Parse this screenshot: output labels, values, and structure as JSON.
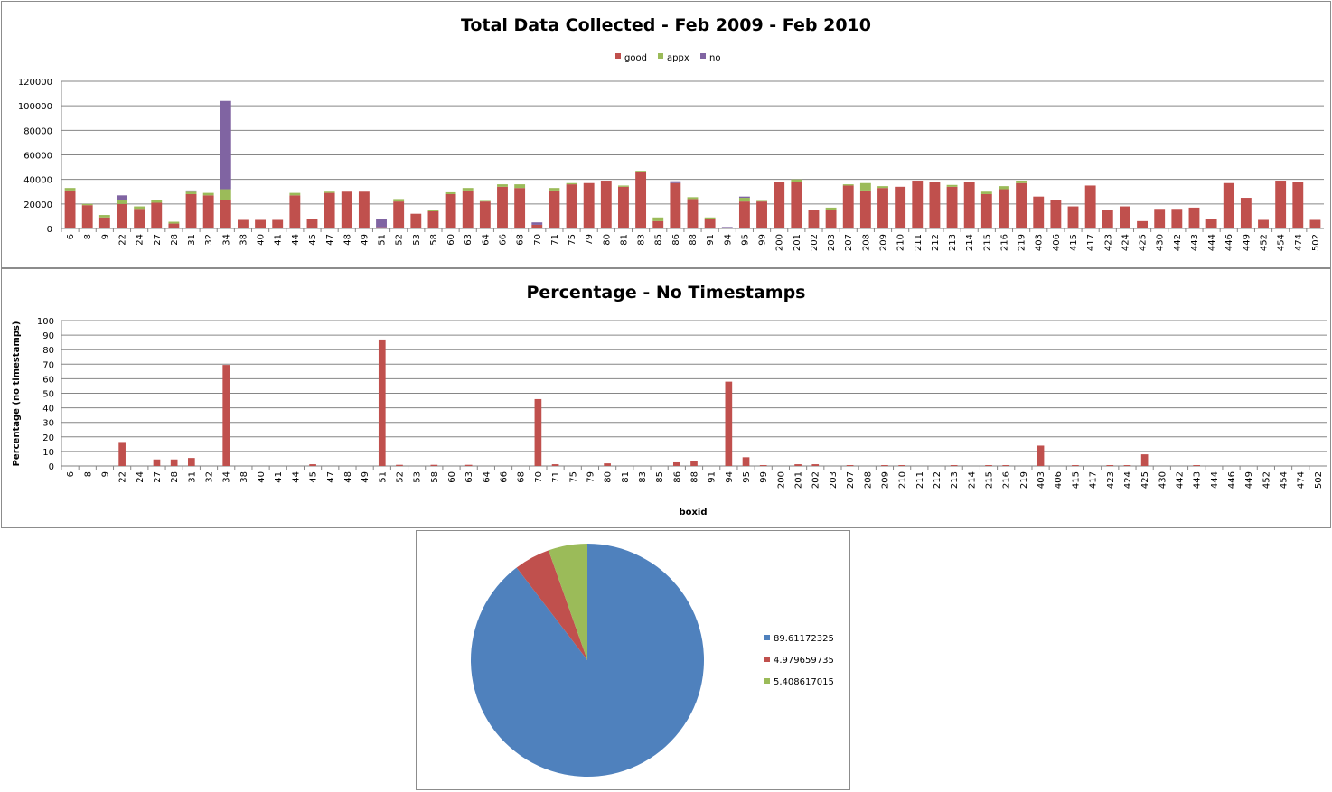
{
  "chart_data": [
    {
      "type": "bar",
      "stacked": true,
      "title": "Total Data Collected - Feb 2009 - Feb 2010",
      "xlabel": "",
      "ylabel": "",
      "ylim": [
        0,
        120000
      ],
      "yticks": [
        0,
        20000,
        40000,
        60000,
        80000,
        100000,
        120000
      ],
      "grid": true,
      "legend_position": "top",
      "categories": [
        "6",
        "8",
        "9",
        "22",
        "24",
        "27",
        "28",
        "31",
        "32",
        "34",
        "38",
        "40",
        "41",
        "44",
        "45",
        "47",
        "48",
        "49",
        "51",
        "52",
        "53",
        "58",
        "60",
        "63",
        "64",
        "66",
        "68",
        "70",
        "71",
        "75",
        "79",
        "80",
        "81",
        "83",
        "85",
        "86",
        "88",
        "91",
        "94",
        "95",
        "99",
        "200",
        "201",
        "202",
        "203",
        "207",
        "208",
        "209",
        "210",
        "211",
        "212",
        "213",
        "214",
        "215",
        "216",
        "219",
        "403",
        "406",
        "415",
        "417",
        "423",
        "424",
        "425",
        "430",
        "442",
        "443",
        "444",
        "446",
        "449",
        "452",
        "454",
        "474",
        "502"
      ],
      "series": [
        {
          "name": "good",
          "color": "#c0504d",
          "values": [
            31000,
            19000,
            9000,
            20000,
            16000,
            21000,
            4000,
            28000,
            27000,
            23000,
            7000,
            7000,
            7000,
            27000,
            8000,
            29000,
            30000,
            30000,
            1000,
            22000,
            12000,
            14000,
            28000,
            31000,
            22000,
            34000,
            33000,
            3000,
            31000,
            36000,
            37000,
            39000,
            34000,
            46000,
            6000,
            37000,
            24000,
            8000,
            500,
            22000,
            22000,
            38000,
            38000,
            15000,
            15000,
            35000,
            31000,
            33000,
            34000,
            39000,
            38000,
            34000,
            38000,
            28000,
            32000,
            37000,
            26000,
            23000,
            18000,
            35000,
            15000,
            18000,
            6000,
            16000,
            16000,
            17000,
            8000,
            37000,
            25000,
            7000,
            39000,
            38000,
            7000
          ]
        },
        {
          "name": "appx",
          "color": "#9bbb59",
          "values": [
            2000,
            1000,
            2000,
            3000,
            2000,
            2000,
            1500,
            2000,
            2000,
            9000,
            0,
            0,
            0,
            2000,
            0,
            1000,
            0,
            0,
            0,
            2000,
            0,
            1000,
            1500,
            2000,
            500,
            2000,
            3000,
            0,
            2000,
            1000,
            0,
            0,
            1000,
            1000,
            3000,
            0,
            1500,
            1000,
            0,
            3000,
            500,
            0,
            2000,
            0,
            2000,
            1000,
            6000,
            1500,
            0,
            0,
            0,
            1500,
            0,
            2000,
            2500,
            2000,
            0,
            0,
            0,
            0,
            0,
            0,
            0,
            0,
            0,
            0,
            0,
            0,
            0,
            0,
            0,
            0,
            0
          ]
        },
        {
          "name": "no",
          "color": "#8064a2",
          "values": [
            0,
            0,
            0,
            4000,
            0,
            0,
            0,
            1000,
            0,
            72000,
            0,
            0,
            0,
            0,
            0,
            0,
            0,
            0,
            7000,
            0,
            0,
            0,
            0,
            0,
            0,
            0,
            0,
            2000,
            0,
            0,
            0,
            0,
            0,
            0,
            0,
            1500,
            0,
            0,
            700,
            1000,
            0,
            0,
            0,
            0,
            0,
            0,
            0,
            0,
            0,
            0,
            0,
            0,
            0,
            0,
            0,
            0,
            0,
            0,
            0,
            0,
            0,
            0,
            0,
            0,
            0,
            0,
            0,
            0,
            0,
            0,
            0,
            0,
            0
          ]
        }
      ]
    },
    {
      "type": "bar",
      "title": "Percentage - No Timestamps",
      "xlabel": "boxid",
      "ylabel": "Percentage (no timestamps)",
      "ylim": [
        0,
        100
      ],
      "yticks": [
        0,
        10,
        20,
        30,
        40,
        50,
        60,
        70,
        80,
        90,
        100
      ],
      "grid": true,
      "categories": [
        "6",
        "8",
        "9",
        "22",
        "24",
        "27",
        "28",
        "31",
        "32",
        "34",
        "38",
        "40",
        "41",
        "44",
        "45",
        "47",
        "48",
        "49",
        "51",
        "52",
        "53",
        "58",
        "60",
        "63",
        "64",
        "66",
        "68",
        "70",
        "71",
        "75",
        "79",
        "80",
        "81",
        "83",
        "85",
        "86",
        "88",
        "91",
        "94",
        "95",
        "99",
        "200",
        "201",
        "202",
        "203",
        "207",
        "208",
        "209",
        "210",
        "211",
        "212",
        "213",
        "214",
        "215",
        "216",
        "219",
        "403",
        "406",
        "415",
        "417",
        "423",
        "424",
        "425",
        "430",
        "442",
        "443",
        "444",
        "446",
        "449",
        "452",
        "454",
        "474",
        "502"
      ],
      "series": [
        {
          "color": "#c0504d",
          "values": [
            0,
            0,
            0,
            16.5,
            0,
            4.5,
            4.5,
            5.5,
            0,
            69.5,
            0,
            0,
            0,
            0,
            1.2,
            0,
            0,
            0,
            87,
            0.8,
            0,
            0.8,
            0,
            0.8,
            0,
            0,
            0,
            46,
            1.2,
            0,
            0,
            1.8,
            0,
            0,
            0,
            2.5,
            3.5,
            0,
            58,
            6,
            0.6,
            0,
            1.2,
            1.2,
            0,
            0.6,
            0,
            0.6,
            0.6,
            0,
            0,
            0.6,
            0,
            0.6,
            0.6,
            0,
            14,
            0,
            0.6,
            0,
            0.6,
            0.6,
            8,
            0,
            0,
            0.6,
            0,
            0,
            0,
            0,
            0,
            0,
            0
          ]
        }
      ]
    },
    {
      "type": "pie",
      "title": "",
      "legend_position": "right",
      "slices": [
        {
          "label": "89.61172325",
          "value": 89.61172325,
          "color": "#4f81bd"
        },
        {
          "label": "4.979659735",
          "value": 4.979659735,
          "color": "#c0504d"
        },
        {
          "label": "5.408617015",
          "value": 5.408617015,
          "color": "#9bbb59"
        }
      ]
    }
  ]
}
